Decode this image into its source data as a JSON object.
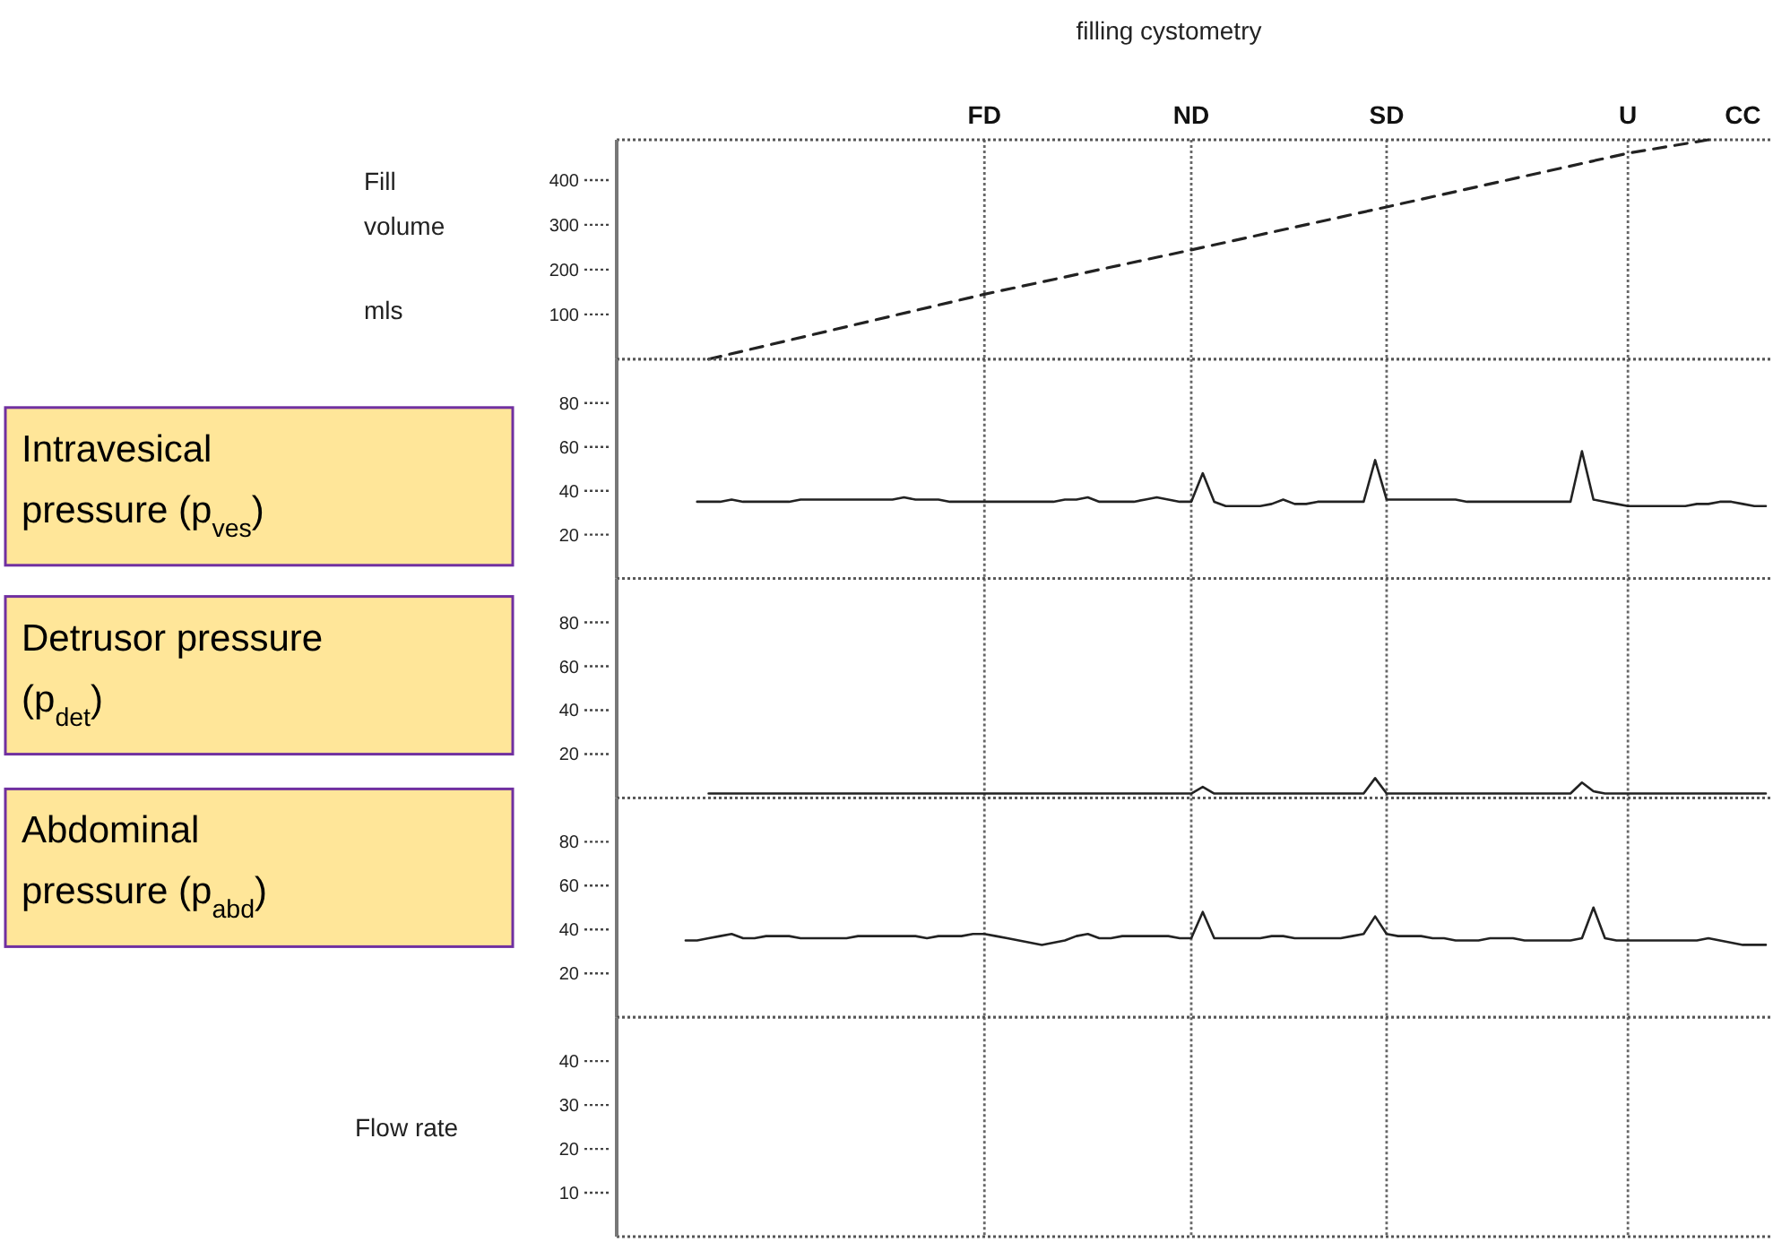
{
  "chart_data": [
    {
      "type": "line",
      "title": "filling cystometry",
      "ylabel": "Fill volume mls",
      "ylim": [
        0,
        490
      ],
      "yticks": [
        100,
        200,
        300,
        400
      ],
      "categories": [
        null,
        null,
        null,
        null,
        null,
        null,
        null,
        null,
        null,
        null,
        null,
        null,
        null,
        null,
        null,
        null,
        null,
        null,
        null,
        null,
        null,
        null,
        null,
        null,
        null,
        null,
        null,
        null,
        null,
        null,
        null,
        null,
        "FD",
        null,
        null,
        null,
        null,
        null,
        null,
        null,
        null,
        null,
        null,
        null,
        null,
        null,
        null,
        null,
        null,
        null,
        "ND",
        null,
        null,
        null,
        null,
        null,
        null,
        null,
        null,
        null,
        null,
        null,
        null,
        null,
        null,
        null,
        null,
        "SD",
        null,
        null,
        null,
        null,
        null,
        null,
        null,
        null,
        null,
        null,
        null,
        null,
        null,
        null,
        null,
        null,
        null,
        null,
        null,
        null,
        "U",
        null,
        null,
        null,
        null,
        null,
        null,
        null,
        null,
        null,
        "CC",
        null,
        null
      ],
      "ref_lines": [
        {
          "axis": "x",
          "value": "FD"
        },
        {
          "axis": "x",
          "value": "ND"
        },
        {
          "axis": "x",
          "value": "SD"
        },
        {
          "axis": "x",
          "value": "U"
        }
      ],
      "series": [
        {
          "color": "#222222",
          "line_style": "dashed",
          "values": [
            null,
            null,
            null,
            null,
            null,
            null,
            null,
            null,
            0,
            null,
            null,
            null,
            null,
            null,
            null,
            null,
            null,
            null,
            null,
            null,
            null,
            null,
            null,
            null,
            null,
            null,
            null,
            null,
            null,
            null,
            null,
            null,
            145,
            null,
            null,
            null,
            null,
            null,
            null,
            null,
            null,
            null,
            null,
            null,
            null,
            null,
            null,
            null,
            null,
            null,
            244,
            null,
            null,
            null,
            null,
            null,
            null,
            null,
            null,
            null,
            null,
            null,
            null,
            null,
            null,
            null,
            null,
            340,
            null,
            null,
            null,
            null,
            null,
            null,
            null,
            null,
            null,
            null,
            null,
            null,
            null,
            null,
            null,
            null,
            null,
            null,
            null,
            null,
            460,
            null,
            null,
            null,
            null,
            null,
            null,
            490,
            null,
            null,
            null,
            null,
            null
          ]
        }
      ]
    },
    {
      "type": "line",
      "ylabel": "Intravesical pressure (p$_{ves}$)",
      "ylim": [
        0,
        100
      ],
      "yticks": [
        20,
        40,
        60,
        80
      ],
      "tick_labels": "y",
      "categories": [
        null,
        null,
        null,
        null,
        null,
        null,
        null,
        null,
        null,
        null,
        null,
        null,
        null,
        null,
        null,
        null,
        null,
        null,
        null,
        null,
        null,
        null,
        null,
        null,
        null,
        null,
        null,
        null,
        null,
        null,
        null,
        null,
        "FD",
        null,
        null,
        null,
        null,
        null,
        null,
        null,
        null,
        null,
        null,
        null,
        null,
        null,
        null,
        null,
        null,
        null,
        "ND",
        null,
        null,
        null,
        null,
        null,
        null,
        null,
        null,
        null,
        null,
        null,
        null,
        null,
        null,
        null,
        null,
        "SD",
        null,
        null,
        null,
        null,
        null,
        null,
        null,
        null,
        null,
        null,
        null,
        null,
        null,
        null,
        null,
        null,
        null,
        null,
        null,
        null,
        "U",
        null,
        null,
        null,
        null,
        null,
        null,
        null,
        null,
        null,
        null,
        null,
        null
      ],
      "ref_lines": [
        {
          "axis": "x",
          "value": "FD"
        },
        {
          "axis": "x",
          "value": "ND"
        },
        {
          "axis": "x",
          "value": "SD"
        },
        {
          "axis": "x",
          "value": "U"
        }
      ],
      "series": [
        {
          "color": "#222222",
          "line_style": "solid",
          "values": [
            null,
            null,
            null,
            null,
            null,
            null,
            null,
            35,
            35,
            35,
            36,
            35,
            35,
            35,
            35,
            35,
            36,
            36,
            36,
            36,
            36,
            36,
            36,
            36,
            36,
            37,
            36,
            36,
            36,
            35,
            35,
            35,
            35,
            35,
            35,
            35,
            35,
            35,
            35,
            36,
            36,
            37,
            35,
            35,
            35,
            35,
            36,
            37,
            36,
            35,
            35,
            48,
            35,
            33,
            33,
            33,
            33,
            34,
            36,
            34,
            34,
            35,
            35,
            35,
            35,
            35,
            54,
            36,
            36,
            36,
            36,
            36,
            36,
            36,
            35,
            35,
            35,
            35,
            35,
            35,
            35,
            35,
            35,
            35,
            58,
            36,
            35,
            34,
            33,
            33,
            33,
            33,
            33,
            33,
            34,
            34,
            35,
            35,
            34,
            33,
            33
          ]
        }
      ]
    },
    {
      "type": "line",
      "ylabel": "Detrusor pressure (p$_{det}$)",
      "ylim": [
        0,
        100
      ],
      "yticks": [
        20,
        40,
        60,
        80
      ],
      "tick_labels": "y",
      "categories": [
        null,
        null,
        null,
        null,
        null,
        null,
        null,
        null,
        null,
        null,
        null,
        null,
        null,
        null,
        null,
        null,
        null,
        null,
        null,
        null,
        null,
        null,
        null,
        null,
        null,
        null,
        null,
        null,
        null,
        null,
        null,
        null,
        "FD",
        null,
        null,
        null,
        null,
        null,
        null,
        null,
        null,
        null,
        null,
        null,
        null,
        null,
        null,
        null,
        null,
        null,
        "ND",
        null,
        null,
        null,
        null,
        null,
        null,
        null,
        null,
        null,
        null,
        null,
        null,
        null,
        null,
        null,
        null,
        "SD",
        null,
        null,
        null,
        null,
        null,
        null,
        null,
        null,
        null,
        null,
        null,
        null,
        null,
        null,
        null,
        null,
        null,
        null,
        null,
        null,
        "U",
        null,
        null,
        null,
        null,
        null,
        null,
        null,
        null,
        null,
        null,
        null,
        null
      ],
      "ref_lines": [
        {
          "axis": "x",
          "value": "FD"
        },
        {
          "axis": "x",
          "value": "ND"
        },
        {
          "axis": "x",
          "value": "SD"
        },
        {
          "axis": "x",
          "value": "U"
        }
      ],
      "series": [
        {
          "color": "#222222",
          "line_style": "solid",
          "values": [
            null,
            null,
            null,
            null,
            null,
            null,
            null,
            null,
            2,
            2,
            2,
            2,
            2,
            2,
            2,
            2,
            2,
            2,
            2,
            2,
            2,
            2,
            2,
            2,
            2,
            2,
            2,
            2,
            2,
            2,
            2,
            2,
            2,
            2,
            2,
            2,
            2,
            2,
            2,
            2,
            2,
            2,
            2,
            2,
            2,
            2,
            2,
            2,
            2,
            2,
            2,
            5,
            2,
            2,
            2,
            2,
            2,
            2,
            2,
            2,
            2,
            2,
            2,
            2,
            2,
            2,
            9,
            2,
            2,
            2,
            2,
            2,
            2,
            2,
            2,
            2,
            2,
            2,
            2,
            2,
            2,
            2,
            2,
            2,
            7,
            3,
            2,
            2,
            2,
            2,
            2,
            2,
            2,
            2,
            2,
            2,
            2,
            2,
            2,
            2,
            2
          ]
        }
      ]
    },
    {
      "type": "line",
      "ylabel": "Abdominal pressure (p$_{abd}$)",
      "ylim": [
        0,
        100
      ],
      "yticks": [
        20,
        40,
        60,
        80
      ],
      "tick_labels": "y",
      "categories": [
        null,
        null,
        null,
        null,
        null,
        null,
        null,
        null,
        null,
        null,
        null,
        null,
        null,
        null,
        null,
        null,
        null,
        null,
        null,
        null,
        null,
        null,
        null,
        null,
        null,
        null,
        null,
        null,
        null,
        null,
        null,
        null,
        "FD",
        null,
        null,
        null,
        null,
        null,
        null,
        null,
        null,
        null,
        null,
        null,
        null,
        null,
        null,
        null,
        null,
        null,
        "ND",
        null,
        null,
        null,
        null,
        null,
        null,
        null,
        null,
        null,
        null,
        null,
        null,
        null,
        null,
        null,
        null,
        "SD",
        null,
        null,
        null,
        null,
        null,
        null,
        null,
        null,
        null,
        null,
        null,
        null,
        null,
        null,
        null,
        null,
        null,
        null,
        null,
        null,
        "U",
        null,
        null,
        null,
        null,
        null,
        null,
        null,
        null,
        null,
        null,
        null,
        null
      ],
      "ref_lines": [
        {
          "axis": "x",
          "value": "FD"
        },
        {
          "axis": "x",
          "value": "ND"
        },
        {
          "axis": "x",
          "value": "SD"
        },
        {
          "axis": "x",
          "value": "U"
        }
      ],
      "series": [
        {
          "color": "#222222",
          "line_style": "solid",
          "values": [
            null,
            null,
            null,
            null,
            null,
            null,
            35,
            35,
            36,
            37,
            38,
            36,
            36,
            37,
            37,
            37,
            36,
            36,
            36,
            36,
            36,
            37,
            37,
            37,
            37,
            37,
            37,
            36,
            37,
            37,
            37,
            38,
            38,
            37,
            36,
            35,
            34,
            33,
            34,
            35,
            37,
            38,
            36,
            36,
            37,
            37,
            37,
            37,
            37,
            36,
            36,
            48,
            36,
            36,
            36,
            36,
            36,
            37,
            37,
            36,
            36,
            36,
            36,
            36,
            37,
            38,
            46,
            38,
            37,
            37,
            37,
            36,
            36,
            35,
            35,
            35,
            36,
            36,
            36,
            35,
            35,
            35,
            35,
            35,
            36,
            50,
            36,
            35,
            35,
            35,
            35,
            35,
            35,
            35,
            35,
            36,
            35,
            34,
            33,
            33,
            33
          ]
        }
      ]
    },
    {
      "type": "line",
      "ylabel": "Flow rate",
      "ylim": [
        0,
        50
      ],
      "yticks": [
        10,
        20,
        30,
        40
      ],
      "tick_labels": "y",
      "categories": [
        null,
        null,
        null,
        null,
        null,
        null,
        null,
        null,
        null,
        null,
        null,
        null,
        null,
        null,
        null,
        null,
        null,
        null,
        null,
        null,
        null,
        null,
        null,
        null,
        null,
        null,
        null,
        null,
        null,
        null,
        null,
        null,
        "FD",
        null,
        null,
        null,
        null,
        null,
        null,
        null,
        null,
        null,
        null,
        null,
        null,
        null,
        null,
        null,
        null,
        null,
        "ND",
        null,
        null,
        null,
        null,
        null,
        null,
        null,
        null,
        null,
        null,
        null,
        null,
        null,
        null,
        null,
        null,
        "SD",
        null,
        null,
        null,
        null,
        null,
        null,
        null,
        null,
        null,
        null,
        null,
        null,
        null,
        null,
        null,
        null,
        null,
        null,
        null,
        null,
        "U",
        null,
        null,
        null,
        null,
        null,
        null,
        null,
        null,
        null,
        null,
        null,
        null
      ],
      "ref_lines": [
        {
          "axis": "x",
          "value": "FD"
        },
        {
          "axis": "x",
          "value": "ND"
        },
        {
          "axis": "x",
          "value": "SD"
        },
        {
          "axis": "x",
          "value": "U"
        }
      ],
      "series": [
        {
          "color": "#222222",
          "line_style": "solid",
          "values": [
            null,
            null,
            null,
            null,
            null,
            null,
            null,
            null,
            null,
            null,
            null,
            null,
            null,
            null,
            null,
            null,
            null,
            null,
            null,
            null,
            null,
            null,
            null,
            null,
            null,
            null,
            null,
            null,
            null,
            null,
            null,
            null,
            null,
            null,
            null,
            null,
            null,
            null,
            null,
            null,
            null,
            null,
            null,
            null,
            null,
            null,
            null,
            null,
            null,
            null,
            null,
            null,
            null,
            null,
            null,
            null,
            null,
            null,
            null,
            null,
            null,
            null,
            null,
            null,
            null,
            null,
            null,
            null,
            null,
            null,
            null,
            null,
            null,
            null,
            null,
            null,
            null,
            null,
            null,
            null,
            null,
            null,
            null,
            null,
            null,
            null,
            null,
            null,
            null,
            null,
            null,
            null,
            null,
            null,
            null,
            null,
            null,
            null,
            null,
            null,
            null
          ]
        }
      ]
    }
  ]
}
